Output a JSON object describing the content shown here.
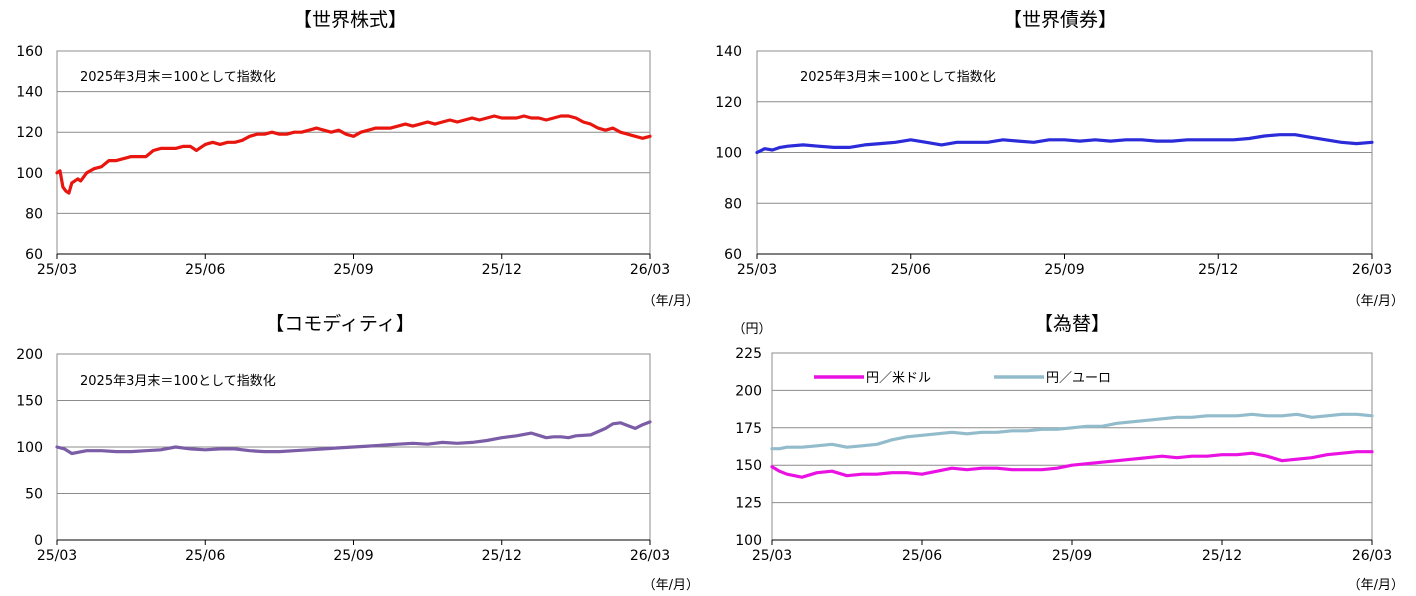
{
  "chart_data": [
    {
      "type": "line",
      "title": "【世界株式】",
      "note": "2025年3月末＝100として指数化",
      "xunit": "（年/月）",
      "yunit": "",
      "ylim": [
        60,
        160
      ],
      "yticks": [
        "60",
        "80",
        "100",
        "120",
        "140",
        "160"
      ],
      "xticks": [
        "25/03",
        "25/06",
        "25/09",
        "25/12",
        "26/03"
      ],
      "grid": true,
      "series": [
        {
          "color": "#e8160e",
          "x": [
            0,
            0.02,
            0.04,
            0.06,
            0.08,
            0.1,
            0.12,
            0.14,
            0.16,
            0.2,
            0.25,
            0.3,
            0.35,
            0.4,
            0.45,
            0.5,
            0.55,
            0.6,
            0.65,
            0.7,
            0.75,
            0.8,
            0.85,
            0.9,
            0.92,
            0.94,
            0.96,
            0.98,
            1.0,
            1.05,
            1.1,
            1.15,
            1.2,
            1.25,
            1.3,
            1.35,
            1.4,
            1.45,
            1.5,
            1.55,
            1.6,
            1.65,
            1.7,
            1.75,
            1.8,
            1.85,
            1.9,
            1.95,
            2.0,
            2.05,
            2.1,
            2.15,
            2.2,
            2.25,
            2.3,
            2.35,
            2.4,
            2.45,
            2.5,
            2.55,
            2.6,
            2.65,
            2.7,
            2.75,
            2.8,
            2.85,
            2.9,
            2.95,
            3.0,
            3.05,
            3.1,
            3.15,
            3.2,
            3.25,
            3.3,
            3.35,
            3.4,
            3.45,
            3.5,
            3.55,
            3.6,
            3.65,
            3.7,
            3.75,
            3.8,
            3.85,
            3.9,
            3.95,
            4.0
          ],
          "y": [
            100,
            101,
            93,
            91,
            90,
            95,
            96,
            97,
            96,
            100,
            102,
            103,
            106,
            106,
            107,
            108,
            108,
            108,
            111,
            112,
            112,
            112,
            113,
            113,
            112,
            111,
            112,
            113,
            114,
            115,
            114,
            115,
            115,
            116,
            118,
            119,
            119,
            120,
            119,
            119,
            120,
            120,
            121,
            122,
            121,
            120,
            121,
            119,
            118,
            120,
            121,
            122,
            122,
            122,
            123,
            124,
            123,
            124,
            125,
            124,
            125,
            126,
            125,
            126,
            127,
            126,
            127,
            128,
            127,
            127,
            127,
            128,
            127,
            127,
            126,
            127,
            128,
            128,
            127,
            125,
            124,
            122,
            121,
            122,
            120,
            119,
            118,
            117,
            118
          ]
        }
      ]
    },
    {
      "type": "line",
      "title": "【世界債券】",
      "note": "2025年3月末＝100として指数化",
      "xunit": "（年/月）",
      "yunit": "",
      "ylim": [
        60,
        140
      ],
      "yticks": [
        "60",
        "80",
        "100",
        "120",
        "140"
      ],
      "xticks": [
        "25/03",
        "25/06",
        "25/09",
        "25/12",
        "26/03"
      ],
      "grid": true,
      "series": [
        {
          "color": "#2b2bd9",
          "x": [
            0,
            0.05,
            0.1,
            0.15,
            0.2,
            0.3,
            0.4,
            0.5,
            0.6,
            0.7,
            0.8,
            0.9,
            1.0,
            1.1,
            1.2,
            1.3,
            1.4,
            1.5,
            1.6,
            1.7,
            1.8,
            1.9,
            2.0,
            2.1,
            2.2,
            2.3,
            2.4,
            2.5,
            2.6,
            2.7,
            2.8,
            2.9,
            3.0,
            3.1,
            3.2,
            3.3,
            3.4,
            3.5,
            3.6,
            3.7,
            3.8,
            3.9,
            4.0
          ],
          "y": [
            100,
            101.5,
            101,
            102,
            102.5,
            103,
            102.5,
            102,
            102,
            103,
            103.5,
            104,
            105,
            104,
            103,
            104,
            104,
            104,
            105,
            104.5,
            104,
            105,
            105,
            104.5,
            105,
            104.5,
            105,
            105,
            104.5,
            104.5,
            105,
            105,
            105,
            105,
            105.5,
            106.5,
            107,
            107,
            106,
            105,
            104,
            103.5,
            104
          ]
        }
      ]
    },
    {
      "type": "line",
      "title": "【コモディティ】",
      "note": "2025年3月末＝100として指数化",
      "xunit": "（年/月）",
      "yunit": "",
      "ylim": [
        0,
        200
      ],
      "yticks": [
        "0",
        "50",
        "100",
        "150",
        "200"
      ],
      "xticks": [
        "25/03",
        "25/06",
        "25/09",
        "25/12",
        "26/03"
      ],
      "grid": true,
      "series": [
        {
          "color": "#7b5ca6",
          "x": [
            0,
            0.05,
            0.1,
            0.2,
            0.3,
            0.4,
            0.5,
            0.6,
            0.7,
            0.8,
            0.9,
            1.0,
            1.1,
            1.2,
            1.3,
            1.4,
            1.5,
            1.6,
            1.7,
            1.8,
            1.9,
            2.0,
            2.1,
            2.2,
            2.3,
            2.4,
            2.5,
            2.6,
            2.7,
            2.8,
            2.9,
            3.0,
            3.1,
            3.2,
            3.3,
            3.35,
            3.4,
            3.45,
            3.5,
            3.6,
            3.7,
            3.75,
            3.8,
            3.85,
            3.9,
            3.95,
            4.0
          ],
          "y": [
            100,
            98,
            93,
            96,
            96,
            95,
            95,
            96,
            97,
            100,
            98,
            97,
            98,
            98,
            96,
            95,
            95,
            96,
            97,
            98,
            99,
            100,
            101,
            102,
            103,
            104,
            103,
            105,
            104,
            105,
            107,
            110,
            112,
            115,
            110,
            111,
            111,
            110,
            112,
            113,
            120,
            125,
            126,
            123,
            120,
            124,
            127
          ]
        }
      ]
    },
    {
      "type": "line",
      "title": "【為替】",
      "note": "",
      "xunit": "（年/月）",
      "yunit": "（円）",
      "ylim": [
        100,
        225
      ],
      "yticks": [
        "100",
        "125",
        "150",
        "175",
        "200",
        "225"
      ],
      "xticks": [
        "25/03",
        "25/06",
        "25/09",
        "25/12",
        "26/03"
      ],
      "grid": true,
      "legend": "top-left",
      "series": [
        {
          "name": "円／米ドル",
          "color": "#ea12e3",
          "x": [
            0,
            0.05,
            0.1,
            0.15,
            0.2,
            0.3,
            0.4,
            0.5,
            0.6,
            0.7,
            0.8,
            0.9,
            1.0,
            1.1,
            1.2,
            1.3,
            1.4,
            1.5,
            1.6,
            1.7,
            1.8,
            1.9,
            2.0,
            2.1,
            2.2,
            2.3,
            2.4,
            2.5,
            2.6,
            2.7,
            2.8,
            2.9,
            3.0,
            3.1,
            3.2,
            3.3,
            3.4,
            3.5,
            3.6,
            3.7,
            3.8,
            3.9,
            4.0
          ],
          "y": [
            149,
            146,
            144,
            143,
            142,
            145,
            146,
            143,
            144,
            144,
            145,
            145,
            144,
            146,
            148,
            147,
            148,
            148,
            147,
            147,
            147,
            148,
            150,
            151,
            152,
            153,
            154,
            155,
            156,
            155,
            156,
            156,
            157,
            157,
            158,
            156,
            153,
            154,
            155,
            157,
            158,
            159,
            159
          ]
        },
        {
          "name": "円／ユーロ",
          "color": "#92bccb",
          "x": [
            0,
            0.05,
            0.1,
            0.2,
            0.3,
            0.4,
            0.5,
            0.6,
            0.7,
            0.8,
            0.9,
            1.0,
            1.1,
            1.2,
            1.3,
            1.4,
            1.5,
            1.6,
            1.7,
            1.8,
            1.9,
            2.0,
            2.1,
            2.2,
            2.3,
            2.4,
            2.5,
            2.6,
            2.7,
            2.8,
            2.9,
            3.0,
            3.1,
            3.2,
            3.3,
            3.4,
            3.5,
            3.6,
            3.7,
            3.8,
            3.9,
            4.0
          ],
          "y": [
            161,
            161,
            162,
            162,
            163,
            164,
            162,
            163,
            164,
            167,
            169,
            170,
            171,
            172,
            171,
            172,
            172,
            173,
            173,
            174,
            174,
            175,
            176,
            176,
            178,
            179,
            180,
            181,
            182,
            182,
            183,
            183,
            183,
            184,
            183,
            183,
            184,
            182,
            183,
            184,
            184,
            183
          ]
        }
      ]
    }
  ]
}
